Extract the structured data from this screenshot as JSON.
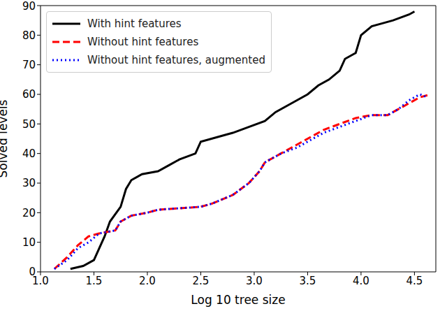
{
  "chart_data": {
    "type": "line",
    "xlabel": "Log 10 tree size",
    "ylabel": "Solved levels",
    "xlim": [
      1.0,
      4.7
    ],
    "xticks": [
      {
        "value": 1.0,
        "label": "1.0"
      },
      {
        "value": 1.5,
        "label": "1.5"
      },
      {
        "value": 2.0,
        "label": "2.0"
      },
      {
        "value": 2.5,
        "label": "2.5"
      },
      {
        "value": 3.0,
        "label": "3.0"
      },
      {
        "value": 3.5,
        "label": "3.5"
      },
      {
        "value": 4.0,
        "label": "4.0"
      },
      {
        "value": 4.5,
        "label": "4.5"
      }
    ],
    "ylim": [
      0,
      90
    ],
    "yticks": [
      0,
      10,
      20,
      30,
      40,
      50,
      60,
      70,
      80,
      90
    ],
    "legend": "upper left",
    "grid": false,
    "series": [
      {
        "name": "With hint features",
        "color": "#000000",
        "line_style": "solid",
        "x": [
          1.28,
          1.4,
          1.5,
          1.55,
          1.6,
          1.65,
          1.75,
          1.8,
          1.85,
          1.95,
          2.1,
          2.2,
          2.3,
          2.45,
          2.5,
          2.7,
          2.8,
          2.95,
          3.1,
          3.2,
          3.35,
          3.5,
          3.6,
          3.7,
          3.8,
          3.85,
          3.95,
          4.0,
          4.1,
          4.2,
          4.3,
          4.45,
          4.5
        ],
        "values": [
          1,
          2,
          4,
          8,
          12,
          17,
          22,
          28,
          31,
          33,
          34,
          36,
          38,
          40,
          44,
          46,
          47,
          49,
          51,
          54,
          57,
          60,
          63,
          65,
          68,
          72,
          74,
          80,
          83,
          84,
          85,
          87,
          88
        ]
      },
      {
        "name": "Without hint features",
        "color": "#ff0000",
        "line_style": "dashed",
        "x": [
          1.13,
          1.25,
          1.35,
          1.45,
          1.55,
          1.7,
          1.75,
          1.85,
          2.0,
          2.1,
          2.5,
          2.6,
          2.8,
          2.95,
          3.05,
          3.1,
          3.25,
          3.4,
          3.5,
          3.65,
          3.8,
          3.95,
          4.1,
          4.25,
          4.35,
          4.45,
          4.55,
          4.65
        ],
        "values": [
          1,
          5,
          9,
          12,
          13,
          14,
          17,
          19,
          20,
          21,
          22,
          23,
          26,
          30,
          34,
          37,
          40,
          43,
          45,
          48,
          50,
          52,
          53,
          53,
          55,
          57,
          59,
          60
        ]
      },
      {
        "name": "Without hint features, augmented",
        "color": "#0000ff",
        "line_style": "dotted",
        "x": [
          1.13,
          1.25,
          1.35,
          1.45,
          1.55,
          1.7,
          1.75,
          1.85,
          2.0,
          2.1,
          2.5,
          2.6,
          2.8,
          2.95,
          3.05,
          3.1,
          3.25,
          3.4,
          3.5,
          3.65,
          3.8,
          3.95,
          4.1,
          4.25,
          4.35,
          4.45,
          4.55,
          4.62
        ],
        "values": [
          1,
          4,
          8,
          10,
          13,
          14,
          17,
          19,
          20,
          21,
          22,
          23,
          26,
          30,
          34,
          37,
          40,
          42,
          44,
          47,
          49,
          51,
          53,
          53,
          55,
          58,
          60,
          59
        ]
      }
    ]
  }
}
